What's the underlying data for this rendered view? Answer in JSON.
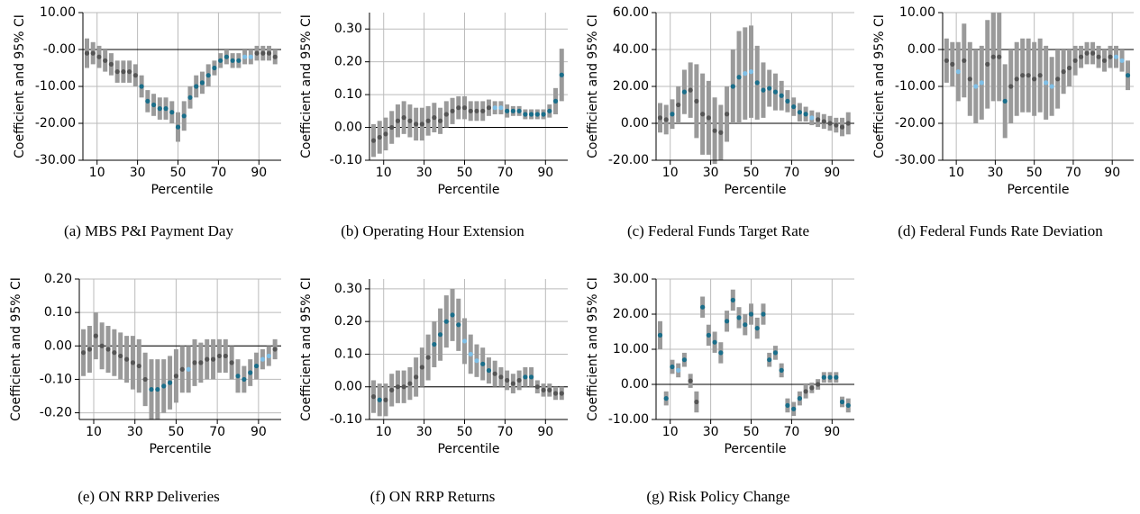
{
  "chart_data": [
    {
      "type": "errorbar",
      "title": "(a) MBS P&I Payment Day",
      "x_label": "Percentile",
      "y_label": "Coefficient and 95% CI",
      "x": [
        5,
        8,
        11,
        14,
        17,
        20,
        23,
        26,
        29,
        32,
        35,
        38,
        41,
        44,
        47,
        50,
        53,
        56,
        59,
        62,
        65,
        68,
        71,
        74,
        77,
        80,
        83,
        86,
        89,
        92,
        95,
        98
      ],
      "values": [
        -1,
        -1,
        -2,
        -3,
        -4,
        -6,
        -6,
        -6,
        -7,
        -10,
        -14,
        -15,
        -16,
        -16,
        -17,
        -21,
        -18,
        -13,
        -10,
        -9,
        -7,
        -5,
        -3,
        -2,
        -3,
        -3,
        -2,
        -2,
        -1,
        -1,
        -1,
        -2
      ],
      "errors": [
        4,
        3,
        3,
        3,
        3,
        3,
        3,
        3,
        3,
        3,
        3,
        3,
        3,
        3,
        3,
        4,
        4,
        3,
        3,
        3,
        3,
        2,
        2,
        2,
        2,
        2,
        2,
        2,
        2,
        2,
        2,
        2
      ],
      "colors": [
        "#555555",
        "#1a6e8a",
        "#7fbfe6"
      ],
      "color_index": [
        0,
        0,
        0,
        0,
        0,
        0,
        0,
        0,
        0,
        1,
        1,
        1,
        1,
        1,
        1,
        1,
        1,
        1,
        1,
        1,
        1,
        1,
        1,
        1,
        1,
        1,
        2,
        2,
        0,
        0,
        0,
        0
      ],
      "xlim": [
        3,
        101
      ],
      "xticks": [
        10,
        30,
        50,
        70,
        90
      ],
      "ylim": [
        -30,
        10
      ],
      "yticks": [
        {
          "value": -30,
          "label": "-30.00"
        },
        {
          "value": -20,
          "label": "-20.00"
        },
        {
          "value": -10,
          "label": "-10.00"
        },
        {
          "value": 0,
          "label": "-0.00"
        },
        {
          "value": 10,
          "label": "10.00"
        }
      ],
      "grid": true
    },
    {
      "type": "errorbar",
      "title": "(b) Operating Hour Extension",
      "x_label": "Percentile",
      "y_label": "Coefficient and 95% CI",
      "x": [
        5,
        8,
        11,
        14,
        17,
        20,
        23,
        26,
        29,
        32,
        35,
        38,
        41,
        44,
        47,
        50,
        53,
        56,
        59,
        62,
        65,
        68,
        71,
        74,
        77,
        80,
        83,
        86,
        89,
        92,
        95,
        98
      ],
      "values": [
        -0.04,
        -0.03,
        -0.02,
        0.0,
        0.02,
        0.03,
        0.02,
        0.01,
        0.01,
        0.02,
        0.03,
        0.02,
        0.04,
        0.05,
        0.06,
        0.06,
        0.05,
        0.05,
        0.05,
        0.06,
        0.06,
        0.06,
        0.05,
        0.05,
        0.05,
        0.04,
        0.04,
        0.04,
        0.04,
        0.05,
        0.08,
        0.16
      ],
      "errors": [
        0.05,
        0.05,
        0.05,
        0.05,
        0.05,
        0.05,
        0.05,
        0.05,
        0.05,
        0.045,
        0.045,
        0.04,
        0.04,
        0.04,
        0.035,
        0.035,
        0.03,
        0.03,
        0.03,
        0.025,
        0.02,
        0.02,
        0.02,
        0.015,
        0.015,
        0.015,
        0.015,
        0.015,
        0.015,
        0.02,
        0.04,
        0.08
      ],
      "colors": [
        "#555555",
        "#1a6e8a",
        "#7fbfe6"
      ],
      "color_index": [
        0,
        0,
        0,
        0,
        0,
        0,
        0,
        0,
        0,
        0,
        0,
        0,
        0,
        0,
        0,
        0,
        0,
        0,
        0,
        0,
        2,
        2,
        1,
        1,
        1,
        1,
        1,
        1,
        1,
        1,
        1,
        1
      ],
      "xlim": [
        3,
        101
      ],
      "xticks": [
        10,
        30,
        50,
        70,
        90
      ],
      "ylim": [
        -0.1,
        0.35
      ],
      "yticks": [
        {
          "value": -0.1,
          "label": "-0.10"
        },
        {
          "value": 0,
          "label": "0.00"
        },
        {
          "value": 0.1,
          "label": "0.10"
        },
        {
          "value": 0.2,
          "label": "0.20"
        },
        {
          "value": 0.3,
          "label": "0.30"
        }
      ],
      "grid": true
    },
    {
      "type": "errorbar",
      "title": "(c) Federal Funds Target Rate",
      "x_label": "Percentile",
      "y_label": "Coefficient and 95% CI",
      "x": [
        5,
        8,
        11,
        14,
        17,
        20,
        23,
        26,
        29,
        32,
        35,
        38,
        41,
        44,
        47,
        50,
        53,
        56,
        59,
        62,
        65,
        68,
        71,
        74,
        77,
        80,
        83,
        86,
        89,
        92,
        95,
        98
      ],
      "values": [
        3,
        2,
        5,
        10,
        17,
        18,
        12,
        5,
        3,
        -4,
        -5,
        5,
        20,
        25,
        27,
        28,
        22,
        18,
        19,
        17,
        15,
        12,
        9,
        6,
        5,
        3,
        2,
        1,
        0,
        -1,
        -2,
        0
      ],
      "errors": [
        8,
        8,
        8,
        10,
        12,
        15,
        20,
        22,
        20,
        18,
        15,
        15,
        20,
        25,
        25,
        25,
        20,
        15,
        10,
        10,
        8,
        6,
        5,
        5,
        4,
        4,
        4,
        4,
        4,
        4,
        5,
        6
      ],
      "colors": [
        "#555555",
        "#1a6e8a",
        "#7fbfe6"
      ],
      "color_index": [
        0,
        0,
        1,
        0,
        1,
        0,
        0,
        0,
        0,
        0,
        0,
        0,
        1,
        1,
        2,
        2,
        1,
        1,
        1,
        1,
        1,
        1,
        1,
        1,
        1,
        2,
        0,
        0,
        0,
        0,
        0,
        0
      ],
      "xlim": [
        3,
        101
      ],
      "xticks": [
        10,
        30,
        50,
        70,
        90
      ],
      "ylim": [
        -20,
        60
      ],
      "yticks": [
        {
          "value": -20,
          "label": "-20.00"
        },
        {
          "value": 0,
          "label": "0.00"
        },
        {
          "value": 20,
          "label": "20.00"
        },
        {
          "value": 40,
          "label": "40.00"
        },
        {
          "value": 60,
          "label": "60.00"
        }
      ],
      "grid": true
    },
    {
      "type": "errorbar",
      "title": "(d) Federal Funds Rate Deviation",
      "x_label": "Percentile",
      "y_label": "Coefficient and 95% CI",
      "x": [
        5,
        8,
        11,
        14,
        17,
        20,
        23,
        26,
        29,
        32,
        35,
        38,
        41,
        44,
        47,
        50,
        53,
        56,
        59,
        62,
        65,
        68,
        71,
        74,
        77,
        80,
        83,
        86,
        89,
        92,
        95,
        98
      ],
      "values": [
        -3,
        -4,
        -6,
        -3,
        -8,
        -10,
        -9,
        -4,
        -2,
        -2,
        -14,
        -10,
        -8,
        -7,
        -7,
        -8,
        -7,
        -9,
        -10,
        -8,
        -6,
        -5,
        -3,
        -2,
        -1,
        -1,
        -2,
        -3,
        -2,
        -2,
        -3,
        -7
      ],
      "errors": [
        6,
        6,
        8,
        10,
        10,
        10,
        10,
        12,
        12,
        12,
        10,
        10,
        10,
        10,
        10,
        10,
        10,
        10,
        8,
        8,
        6,
        5,
        4,
        3,
        3,
        3,
        3,
        3,
        3,
        3,
        3,
        4
      ],
      "colors": [
        "#555555",
        "#1a6e8a",
        "#7fbfe6"
      ],
      "color_index": [
        0,
        0,
        2,
        0,
        0,
        2,
        2,
        0,
        0,
        0,
        1,
        0,
        0,
        0,
        0,
        0,
        0,
        2,
        2,
        0,
        0,
        0,
        0,
        0,
        0,
        0,
        0,
        0,
        0,
        2,
        2,
        1
      ],
      "xlim": [
        3,
        101
      ],
      "xticks": [
        10,
        30,
        50,
        70,
        90
      ],
      "ylim": [
        -30,
        10
      ],
      "yticks": [
        {
          "value": -30,
          "label": "-30.00"
        },
        {
          "value": -20,
          "label": "-20.00"
        },
        {
          "value": -10,
          "label": "-10.00"
        },
        {
          "value": 0,
          "label": "0.00"
        },
        {
          "value": 10,
          "label": "10.00"
        }
      ],
      "grid": true
    },
    {
      "type": "errorbar",
      "title": "(e) ON RRP Deliveries",
      "x_label": "Percentile",
      "y_label": "Coefficient and 95% CI",
      "x": [
        5,
        8,
        11,
        14,
        17,
        20,
        23,
        26,
        29,
        32,
        35,
        38,
        41,
        44,
        47,
        50,
        53,
        56,
        59,
        62,
        65,
        68,
        71,
        74,
        77,
        80,
        83,
        86,
        89,
        92,
        95,
        98
      ],
      "values": [
        -0.02,
        -0.01,
        0.03,
        0.0,
        -0.01,
        -0.02,
        -0.03,
        -0.04,
        -0.05,
        -0.06,
        -0.1,
        -0.13,
        -0.13,
        -0.12,
        -0.11,
        -0.09,
        -0.07,
        -0.07,
        -0.05,
        -0.05,
        -0.04,
        -0.04,
        -0.03,
        -0.03,
        -0.05,
        -0.09,
        -0.1,
        -0.08,
        -0.06,
        -0.04,
        -0.03,
        -0.01
      ],
      "errors": [
        0.07,
        0.07,
        0.07,
        0.07,
        0.07,
        0.07,
        0.07,
        0.07,
        0.08,
        0.08,
        0.08,
        0.09,
        0.09,
        0.08,
        0.08,
        0.08,
        0.07,
        0.07,
        0.07,
        0.06,
        0.06,
        0.06,
        0.05,
        0.05,
        0.05,
        0.05,
        0.04,
        0.04,
        0.04,
        0.03,
        0.03,
        0.03
      ],
      "colors": [
        "#555555",
        "#1a6e8a",
        "#7fbfe6"
      ],
      "color_index": [
        0,
        0,
        0,
        0,
        0,
        0,
        0,
        0,
        0,
        0,
        0,
        1,
        1,
        1,
        1,
        0,
        0,
        2,
        0,
        0,
        0,
        0,
        0,
        0,
        0,
        1,
        1,
        1,
        1,
        2,
        2,
        0
      ],
      "xlim": [
        3,
        101
      ],
      "xticks": [
        10,
        30,
        50,
        70,
        90
      ],
      "ylim": [
        -0.22,
        0.2
      ],
      "yticks": [
        {
          "value": -0.2,
          "label": "-0.20"
        },
        {
          "value": -0.1,
          "label": "-0.10"
        },
        {
          "value": 0,
          "label": "0.00"
        },
        {
          "value": 0.1,
          "label": "0.10"
        },
        {
          "value": 0.2,
          "label": "0.20"
        }
      ],
      "grid": true
    },
    {
      "type": "errorbar",
      "title": "(f) ON RRP Returns",
      "x_label": "Percentile",
      "y_label": "Coefficient and 95% CI",
      "x": [
        5,
        8,
        11,
        14,
        17,
        20,
        23,
        26,
        29,
        32,
        35,
        38,
        41,
        44,
        47,
        50,
        53,
        56,
        59,
        62,
        65,
        68,
        71,
        74,
        77,
        80,
        83,
        86,
        89,
        92,
        95,
        98
      ],
      "values": [
        -0.03,
        -0.04,
        -0.04,
        -0.01,
        0.0,
        0.0,
        0.01,
        0.03,
        0.06,
        0.09,
        0.13,
        0.16,
        0.2,
        0.22,
        0.19,
        0.14,
        0.1,
        0.08,
        0.07,
        0.05,
        0.04,
        0.03,
        0.02,
        0.01,
        0.02,
        0.03,
        0.03,
        0.0,
        -0.01,
        -0.01,
        -0.02,
        -0.02
      ],
      "errors": [
        0.05,
        0.05,
        0.05,
        0.05,
        0.05,
        0.05,
        0.05,
        0.06,
        0.06,
        0.07,
        0.07,
        0.08,
        0.08,
        0.08,
        0.08,
        0.07,
        0.06,
        0.05,
        0.05,
        0.04,
        0.04,
        0.03,
        0.03,
        0.03,
        0.03,
        0.03,
        0.03,
        0.02,
        0.02,
        0.02,
        0.02,
        0.02
      ],
      "colors": [
        "#555555",
        "#1a6e8a",
        "#7fbfe6"
      ],
      "color_index": [
        0,
        1,
        0,
        0,
        0,
        0,
        0,
        0,
        0,
        0,
        1,
        1,
        1,
        1,
        1,
        2,
        2,
        2,
        1,
        1,
        0,
        0,
        0,
        0,
        0,
        1,
        1,
        0,
        0,
        0,
        0,
        0
      ],
      "xlim": [
        3,
        101
      ],
      "xticks": [
        10,
        30,
        50,
        70,
        90
      ],
      "ylim": [
        -0.1,
        0.33
      ],
      "yticks": [
        {
          "value": -0.1,
          "label": "-0.10"
        },
        {
          "value": 0,
          "label": "0.00"
        },
        {
          "value": 0.1,
          "label": "0.10"
        },
        {
          "value": 0.2,
          "label": "0.20"
        },
        {
          "value": 0.3,
          "label": "0.30"
        }
      ],
      "grid": true
    },
    {
      "type": "errorbar",
      "title": "(g) Risk Policy Change",
      "x_label": "Percentile",
      "y_label": "Coefficient and 95% CI",
      "x": [
        5,
        8,
        11,
        14,
        17,
        20,
        23,
        26,
        29,
        32,
        35,
        38,
        41,
        44,
        47,
        50,
        53,
        56,
        59,
        62,
        65,
        68,
        71,
        74,
        77,
        80,
        83,
        86,
        89,
        92,
        95,
        98
      ],
      "values": [
        14,
        -4,
        5,
        4,
        7,
        1,
        -5,
        22,
        14,
        12,
        9,
        18,
        24,
        19,
        17,
        20,
        16,
        20,
        7,
        9,
        4,
        -6,
        -7,
        -4,
        -2,
        -1,
        0,
        2,
        2,
        2,
        -5,
        -6
      ],
      "errors": [
        4,
        2,
        2,
        2,
        2,
        2,
        3,
        3,
        3,
        3,
        3,
        3,
        3,
        3,
        3,
        3,
        3,
        3,
        2,
        2,
        2,
        2,
        2,
        2,
        2,
        1.5,
        1.5,
        1.5,
        1.5,
        1.5,
        1.5,
        2
      ],
      "colors": [
        "#555555",
        "#1a6e8a",
        "#7fbfe6"
      ],
      "color_index": [
        1,
        1,
        1,
        2,
        1,
        0,
        0,
        1,
        1,
        1,
        1,
        1,
        1,
        1,
        1,
        1,
        1,
        1,
        1,
        1,
        1,
        1,
        1,
        1,
        0,
        0,
        0,
        1,
        1,
        1,
        1,
        1
      ],
      "xlim": [
        3,
        101
      ],
      "xticks": [
        10,
        30,
        50,
        70,
        90
      ],
      "ylim": [
        -10,
        30
      ],
      "yticks": [
        {
          "value": -10,
          "label": "-10.00"
        },
        {
          "value": 0,
          "label": "0.00"
        },
        {
          "value": 10,
          "label": "10.00"
        },
        {
          "value": 20,
          "label": "20.00"
        },
        {
          "value": 30,
          "label": "30.00"
        }
      ],
      "grid": true
    }
  ]
}
